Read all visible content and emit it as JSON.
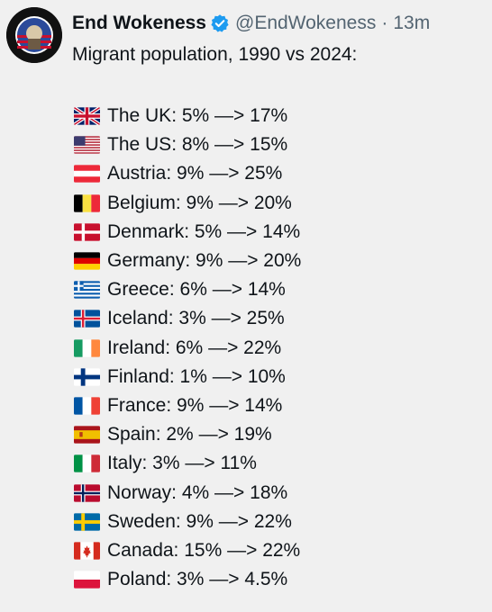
{
  "tweet": {
    "author_name": "End Wokeness",
    "handle": "@EndWokeness",
    "separator": "·",
    "time": "13m",
    "text_intro": "Migrant population, 1990 vs 2024:",
    "avatar_text": "I SUPPORT THE FORMER THINGS",
    "rows": [
      {
        "flag": "uk-flag-icon",
        "text": "The UK: 5% —> 17%"
      },
      {
        "flag": "us-flag-icon",
        "text": "The US: 8% —> 15%"
      },
      {
        "flag": "austria-flag-icon",
        "text": "Austria: 9% —> 25%"
      },
      {
        "flag": "belgium-flag-icon",
        "text": "Belgium: 9% —> 20%"
      },
      {
        "flag": "denmark-flag-icon",
        "text": "Denmark: 5% —> 14%"
      },
      {
        "flag": "germany-flag-icon",
        "text": "Germany: 9% —> 20%"
      },
      {
        "flag": "greece-flag-icon",
        "text": "Greece: 6% —> 14%"
      },
      {
        "flag": "iceland-flag-icon",
        "text": "Iceland: 3% —> 25%"
      },
      {
        "flag": "ireland-flag-icon",
        "text": "Ireland: 6% —> 22%"
      },
      {
        "flag": "finland-flag-icon",
        "text": "Finland: 1% —> 10%"
      },
      {
        "flag": "france-flag-icon",
        "text": "France: 9% —> 14%"
      },
      {
        "flag": "spain-flag-icon",
        "text": "Spain: 2% —> 19%"
      },
      {
        "flag": "italy-flag-icon",
        "text": "Italy: 3% —> 11%"
      },
      {
        "flag": "norway-flag-icon",
        "text": "Norway: 4% —> 18%"
      },
      {
        "flag": "sweden-flag-icon",
        "text": "Sweden: 9% —> 22%"
      },
      {
        "flag": "canada-flag-icon",
        "text": "Canada: 15% —> 22%"
      },
      {
        "flag": "poland-flag-icon",
        "text": "Poland: 3% —> 4.5%"
      }
    ]
  },
  "colors": {
    "background": "#f0f0f0",
    "text": "#0f1419",
    "muted": "#536471",
    "verified": "#1d9bf0"
  }
}
